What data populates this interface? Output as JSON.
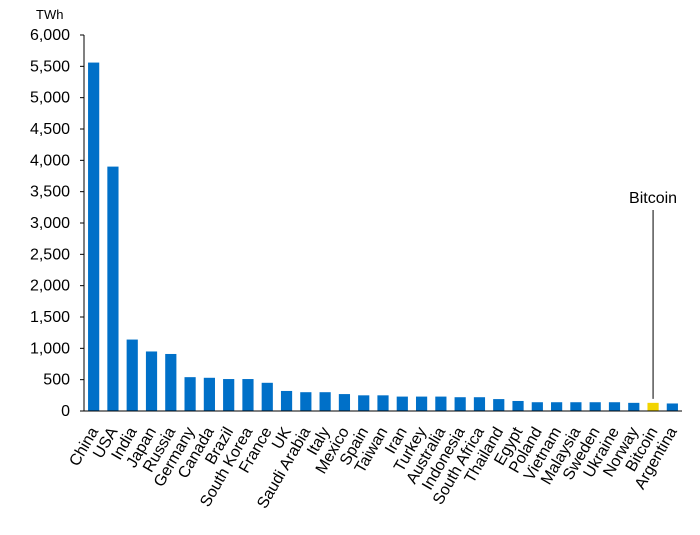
{
  "chart_data": {
    "type": "bar",
    "unit_label": "TWh",
    "ylim": [
      0,
      6000
    ],
    "yticks": [
      "0",
      "500",
      "1,000",
      "1,500",
      "2,000",
      "2,500",
      "3,000",
      "3,500",
      "4,000",
      "4,500",
      "5,000",
      "5,500",
      "6,000"
    ],
    "categories": [
      "China",
      "USA",
      "India",
      "Japan",
      "Russia",
      "Germany",
      "Canada",
      "Brazil",
      "South Korea",
      "France",
      "UK",
      "Saudi Arabia",
      "Italy",
      "Mexico",
      "Spain",
      "Taiwan",
      "Iran",
      "Turkey",
      "Australia",
      "Indonesia",
      "South Africa",
      "Thailand",
      "Egypt",
      "Poland",
      "Vietnam",
      "Malaysia",
      "Sweden",
      "Ukraine",
      "Norway",
      "Bitcoin",
      "Argentina"
    ],
    "values": [
      5560,
      3900,
      1140,
      950,
      910,
      540,
      530,
      510,
      510,
      450,
      320,
      300,
      300,
      270,
      250,
      250,
      230,
      230,
      230,
      220,
      220,
      190,
      160,
      140,
      140,
      140,
      140,
      140,
      130,
      130,
      120
    ],
    "highlight": {
      "category": "Bitcoin",
      "label": "Bitcoin"
    },
    "colors": {
      "bar": "#0070c8",
      "highlight": "#f2d400",
      "axis": "#000000"
    },
    "grid": false,
    "legend": "none"
  }
}
